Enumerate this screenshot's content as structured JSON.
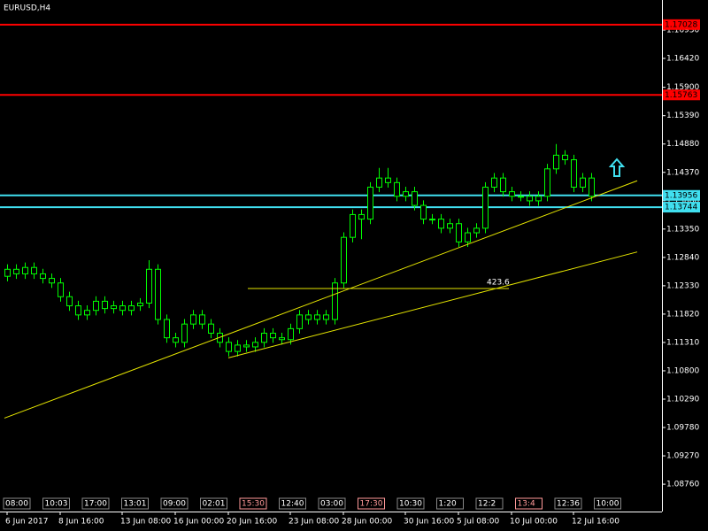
{
  "chart_data": {
    "type": "candlestick",
    "title": "EURUSD,H4",
    "color": "#00ff00",
    "ylim": [
      1.08268,
      1.17471
    ],
    "yticks": [
      {
        "value": 1.1693,
        "label": "1.16930"
      },
      {
        "value": 1.1642,
        "label": "1.16420"
      },
      {
        "value": 1.159,
        "label": "1.15900"
      },
      {
        "value": 1.1539,
        "label": "1.15390"
      },
      {
        "value": 1.1488,
        "label": "1.14880"
      },
      {
        "value": 1.1437,
        "label": "1.14370"
      },
      {
        "value": 1.1386,
        "label": "1.13860"
      },
      {
        "value": 1.1335,
        "label": "1.13350"
      },
      {
        "value": 1.1284,
        "label": "1.12840"
      },
      {
        "value": 1.1233,
        "label": "1.12330"
      },
      {
        "value": 1.1182,
        "label": "1.11820"
      },
      {
        "value": 1.1131,
        "label": "1.11310"
      },
      {
        "value": 1.108,
        "label": "1.10800"
      },
      {
        "value": 1.1029,
        "label": "1.10290"
      },
      {
        "value": 1.0978,
        "label": "1.09780"
      },
      {
        "value": 1.0927,
        "label": "1.09270"
      },
      {
        "value": 1.0876,
        "label": "1.08760"
      }
    ],
    "categories": [
      "6 Jun 2017",
      null,
      null,
      null,
      null,
      null,
      "8 Jun 16:00",
      null,
      null,
      null,
      null,
      null,
      null,
      "13 Jun 08:00",
      null,
      null,
      null,
      null,
      null,
      "16 Jun 00:00",
      null,
      null,
      null,
      null,
      null,
      "20 Jun 16:00",
      null,
      null,
      null,
      null,
      null,
      null,
      "23 Jun 08:00",
      null,
      null,
      null,
      null,
      null,
      "28 Jun 00:00",
      null,
      null,
      null,
      null,
      null,
      null,
      "30 Jun 16:00",
      null,
      null,
      null,
      null,
      null,
      "5 Jul 08:00",
      null,
      null,
      null,
      null,
      null,
      "10 Jul 00:00",
      null,
      null,
      null,
      null,
      null,
      null,
      "12 Jul 16:00",
      null,
      null
    ],
    "open": [
      1.125,
      1.12626,
      1.12544,
      1.12659,
      1.12544,
      1.12462,
      1.1238,
      1.12133,
      1.11969,
      1.11805,
      1.11887,
      1.12051,
      1.1192,
      1.11969,
      1.11887,
      1.11969,
      1.12018,
      1.12626,
      1.11723,
      1.11394,
      1.11312,
      1.11641,
      1.11805,
      1.11641,
      1.11476,
      1.11312,
      1.11148,
      1.11263,
      1.1123,
      1.11312,
      1.11476,
      1.11394,
      1.11361,
      1.11558,
      1.11805,
      1.11723,
      1.11805,
      1.11723,
      1.1238,
      1.13201,
      1.13611,
      1.13529,
      1.14104,
      1.14268,
      1.14186,
      1.1394,
      1.14022,
      1.13776,
      1.13529,
      1.13529,
      1.13365,
      1.13447,
      1.13119,
      1.13283,
      1.13365,
      1.14104,
      1.14268,
      1.14022,
      1.1394,
      1.1394,
      1.13858,
      1.1394,
      1.14433,
      1.14679,
      1.14597,
      1.14104,
      1.14268
    ],
    "high": [
      1.12716,
      1.12716,
      1.12749,
      1.12749,
      1.12634,
      1.12552,
      1.1247,
      1.12223,
      1.12059,
      1.11977,
      1.12141,
      1.12141,
      1.12059,
      1.12059,
      1.12059,
      1.12108,
      1.1279,
      1.12716,
      1.11813,
      1.11484,
      1.11731,
      1.11895,
      1.11895,
      1.11731,
      1.11566,
      1.11402,
      1.11353,
      1.11353,
      1.11402,
      1.11566,
      1.11566,
      1.11484,
      1.11648,
      1.11895,
      1.11895,
      1.11895,
      1.11895,
      1.1247,
      1.13291,
      1.13701,
      1.13701,
      1.14194,
      1.1445,
      1.1445,
      1.14276,
      1.14112,
      1.14112,
      1.13866,
      1.13619,
      1.13619,
      1.13537,
      1.13537,
      1.13373,
      1.13455,
      1.14194,
      1.14358,
      1.14358,
      1.14112,
      1.1403,
      1.1403,
      1.1403,
      1.14523,
      1.1488,
      1.14769,
      1.14687,
      1.14358,
      1.14358
    ],
    "low": [
      1.1241,
      1.12454,
      1.12454,
      1.12454,
      1.12372,
      1.1229,
      1.12043,
      1.11879,
      1.11715,
      1.11715,
      1.11797,
      1.1183,
      1.1183,
      1.11797,
      1.11797,
      1.11879,
      1.11928,
      1.11633,
      1.11304,
      1.11222,
      1.11222,
      1.11551,
      1.11551,
      1.11386,
      1.11222,
      1.11058,
      1.11058,
      1.1114,
      1.1114,
      1.11222,
      1.11304,
      1.11271,
      1.11271,
      1.11468,
      1.11633,
      1.11633,
      1.11633,
      1.11633,
      1.1229,
      1.13111,
      1.13168,
      1.13439,
      1.14014,
      1.14096,
      1.1385,
      1.1385,
      1.13686,
      1.13439,
      1.13439,
      1.13275,
      1.13275,
      1.13029,
      1.13029,
      1.13193,
      1.13275,
      1.14014,
      1.13932,
      1.1385,
      1.1385,
      1.13768,
      1.13768,
      1.1385,
      1.14343,
      1.14507,
      1.14014,
      1.14014,
      1.1385
    ],
    "close": [
      1.12626,
      1.12544,
      1.12659,
      1.12544,
      1.12462,
      1.1238,
      1.12133,
      1.11969,
      1.11805,
      1.11887,
      1.12051,
      1.1192,
      1.11969,
      1.11887,
      1.11969,
      1.12018,
      1.12626,
      1.11723,
      1.11394,
      1.11312,
      1.11641,
      1.11805,
      1.11641,
      1.11476,
      1.11312,
      1.11148,
      1.11263,
      1.1123,
      1.11312,
      1.11476,
      1.11394,
      1.11361,
      1.11558,
      1.11805,
      1.11723,
      1.11805,
      1.11723,
      1.1238,
      1.13201,
      1.13611,
      1.13529,
      1.14104,
      1.14268,
      1.14186,
      1.1394,
      1.14022,
      1.13776,
      1.13529,
      1.13529,
      1.13365,
      1.13447,
      1.13119,
      1.13283,
      1.13365,
      1.14104,
      1.14268,
      1.14022,
      1.1394,
      1.1394,
      1.13858,
      1.1394,
      1.14433,
      1.14679,
      1.14597,
      1.14104,
      1.14268,
      1.1394
    ],
    "levels": [
      {
        "value": 1.17028,
        "color": "#ff0000"
      },
      {
        "value": 1.15763,
        "color": "#ff0000"
      },
      {
        "value": 1.13956,
        "color": "#40e0f0"
      },
      {
        "value": 1.13744,
        "color": "#40e0f0"
      }
    ],
    "trendlines": [
      {
        "start": 1.09949,
        "end": 1.14219,
        "color": "#e6e600"
      },
      {
        "start": 1.11033,
        "end": 1.12938,
        "color": "#e6e600"
      }
    ],
    "fib_level": {
      "value": 1.12281,
      "label": 423.6,
      "color": "#e6e600"
    },
    "time_marks": [
      {
        "label": "08:00",
        "color": "#ffffff"
      },
      {
        "label": "10:03",
        "color": "#ffffff"
      },
      {
        "label": "17:00",
        "color": "#ffffff"
      },
      {
        "label": "13:01",
        "color": "#ffffff"
      },
      {
        "label": "09:00",
        "color": "#ffffff"
      },
      {
        "label": "02:01",
        "color": "#ffffff"
      },
      {
        "label": "15:30",
        "color": "#ff9999"
      },
      {
        "label": "12:40",
        "color": "#ffffff"
      },
      {
        "label": "03:00",
        "color": "#ffffff"
      },
      {
        "label": "17:30",
        "color": "#ff9999"
      },
      {
        "label": "10:30",
        "color": "#ffffff"
      },
      {
        "label": "1:20",
        "color": "#ffffff"
      },
      {
        "label": "12:2",
        "color": "#ffffff"
      },
      {
        "label": "13:4",
        "color": "#ff9999"
      },
      {
        "label": "12:36",
        "color": "#ffffff"
      },
      {
        "label": "10:00",
        "color": "#ffffff"
      }
    ]
  }
}
